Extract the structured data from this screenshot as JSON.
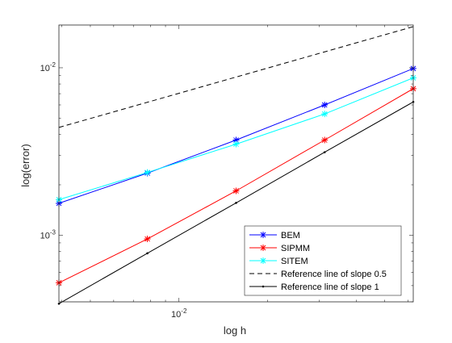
{
  "chart_data": {
    "type": "line",
    "x_scale": "log",
    "y_scale": "log",
    "xlabel": "log h",
    "ylabel": "log(error)",
    "xlim": [
      0.00391,
      0.0625
    ],
    "ylim": [
      0.0004,
      0.018
    ],
    "x_tick_labels": [
      {
        "value": 0.01,
        "base": "10",
        "exp": "-2"
      }
    ],
    "y_tick_labels": [
      {
        "value": 0.01,
        "base": "10",
        "exp": "-2"
      },
      {
        "value": 0.001,
        "base": "10",
        "exp": "-3"
      }
    ],
    "grid": false,
    "legend_position": "bottom-right",
    "series": [
      {
        "name": "BEM",
        "color": "#0000ff",
        "line": "solid",
        "marker": "star",
        "x": [
          0.00391,
          0.00781,
          0.01563,
          0.03125,
          0.0625
        ],
        "y": [
          0.00155,
          0.00235,
          0.0037,
          0.006,
          0.0099
        ]
      },
      {
        "name": "SIPMM",
        "color": "#ff0000",
        "line": "solid",
        "marker": "star",
        "x": [
          0.00391,
          0.00781,
          0.01563,
          0.03125,
          0.0625
        ],
        "y": [
          0.00052,
          0.00095,
          0.00184,
          0.0037,
          0.0075
        ]
      },
      {
        "name": "SITEM",
        "color": "#00ffff",
        "line": "solid",
        "marker": "star",
        "x": [
          0.00391,
          0.00781,
          0.01563,
          0.03125,
          0.0625
        ],
        "y": [
          0.00163,
          0.00237,
          0.0035,
          0.0053,
          0.0087
        ]
      },
      {
        "name": "Reference line of slope 0.5",
        "color": "#000000",
        "line": "dashed",
        "marker": "none",
        "x": [
          0.00391,
          0.0625
        ],
        "y": [
          0.0044,
          0.0176
        ]
      },
      {
        "name": "Reference line of slope 1",
        "color": "#000000",
        "line": "solid",
        "marker": "dot",
        "x": [
          0.00391,
          0.00781,
          0.01563,
          0.03125,
          0.0625
        ],
        "y": [
          0.00039,
          0.00078,
          0.00156,
          0.00313,
          0.00625
        ]
      }
    ]
  }
}
